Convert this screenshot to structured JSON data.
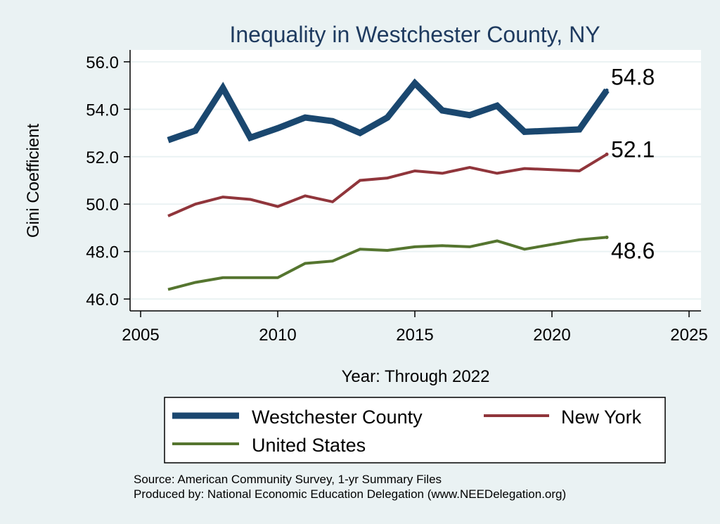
{
  "chart_data": {
    "type": "line",
    "title": "Inequality in Westchester County, NY",
    "xlabel": "Year: Through 2022",
    "ylabel": "Gini Coefficient",
    "xlim": [
      2005,
      2025
    ],
    "ylim": [
      45.5,
      56.5
    ],
    "x_ticks": [
      2005,
      2010,
      2015,
      2020,
      2025
    ],
    "x_tick_labels": [
      "2005",
      "2010",
      "2015",
      "2020",
      "2025"
    ],
    "y_ticks": [
      46,
      48,
      50,
      52,
      54,
      56
    ],
    "y_tick_labels": [
      "46.0",
      "48.0",
      "50.0",
      "52.0",
      "54.0",
      "56.0"
    ],
    "grid": true,
    "legend_position": "bottom",
    "series": [
      {
        "name": "Westchester County",
        "color": "#1a476f",
        "x": [
          2006,
          2007,
          2008,
          2009,
          2010,
          2011,
          2012,
          2013,
          2014,
          2015,
          2016,
          2017,
          2018,
          2019,
          2021,
          2022
        ],
        "values": [
          52.7,
          53.1,
          54.9,
          52.8,
          53.2,
          53.65,
          53.5,
          53.0,
          53.65,
          55.1,
          53.95,
          53.75,
          54.15,
          53.05,
          53.15,
          54.8
        ],
        "end_label": "54.8"
      },
      {
        "name": "New York",
        "color": "#90353b",
        "x": [
          2006,
          2007,
          2008,
          2009,
          2010,
          2011,
          2012,
          2013,
          2014,
          2015,
          2016,
          2017,
          2018,
          2019,
          2021,
          2022
        ],
        "values": [
          49.5,
          50.0,
          50.3,
          50.2,
          49.9,
          50.35,
          50.1,
          51.0,
          51.1,
          51.4,
          51.3,
          51.55,
          51.3,
          51.5,
          51.4,
          52.1
        ],
        "end_label": "52.1"
      },
      {
        "name": "United States",
        "color": "#55752f",
        "x": [
          2006,
          2007,
          2008,
          2009,
          2010,
          2011,
          2012,
          2013,
          2014,
          2015,
          2016,
          2017,
          2018,
          2019,
          2021,
          2022
        ],
        "values": [
          46.4,
          46.7,
          46.9,
          46.9,
          46.9,
          47.5,
          47.6,
          48.1,
          48.05,
          48.2,
          48.25,
          48.2,
          48.45,
          48.1,
          48.5,
          48.6
        ],
        "end_label": "48.6"
      }
    ],
    "notes": [
      "Source: American Community Survey, 1-yr Summary Files",
      "Produced by: National Economic Education Delegation (www.NEEDelegation.org)"
    ]
  }
}
